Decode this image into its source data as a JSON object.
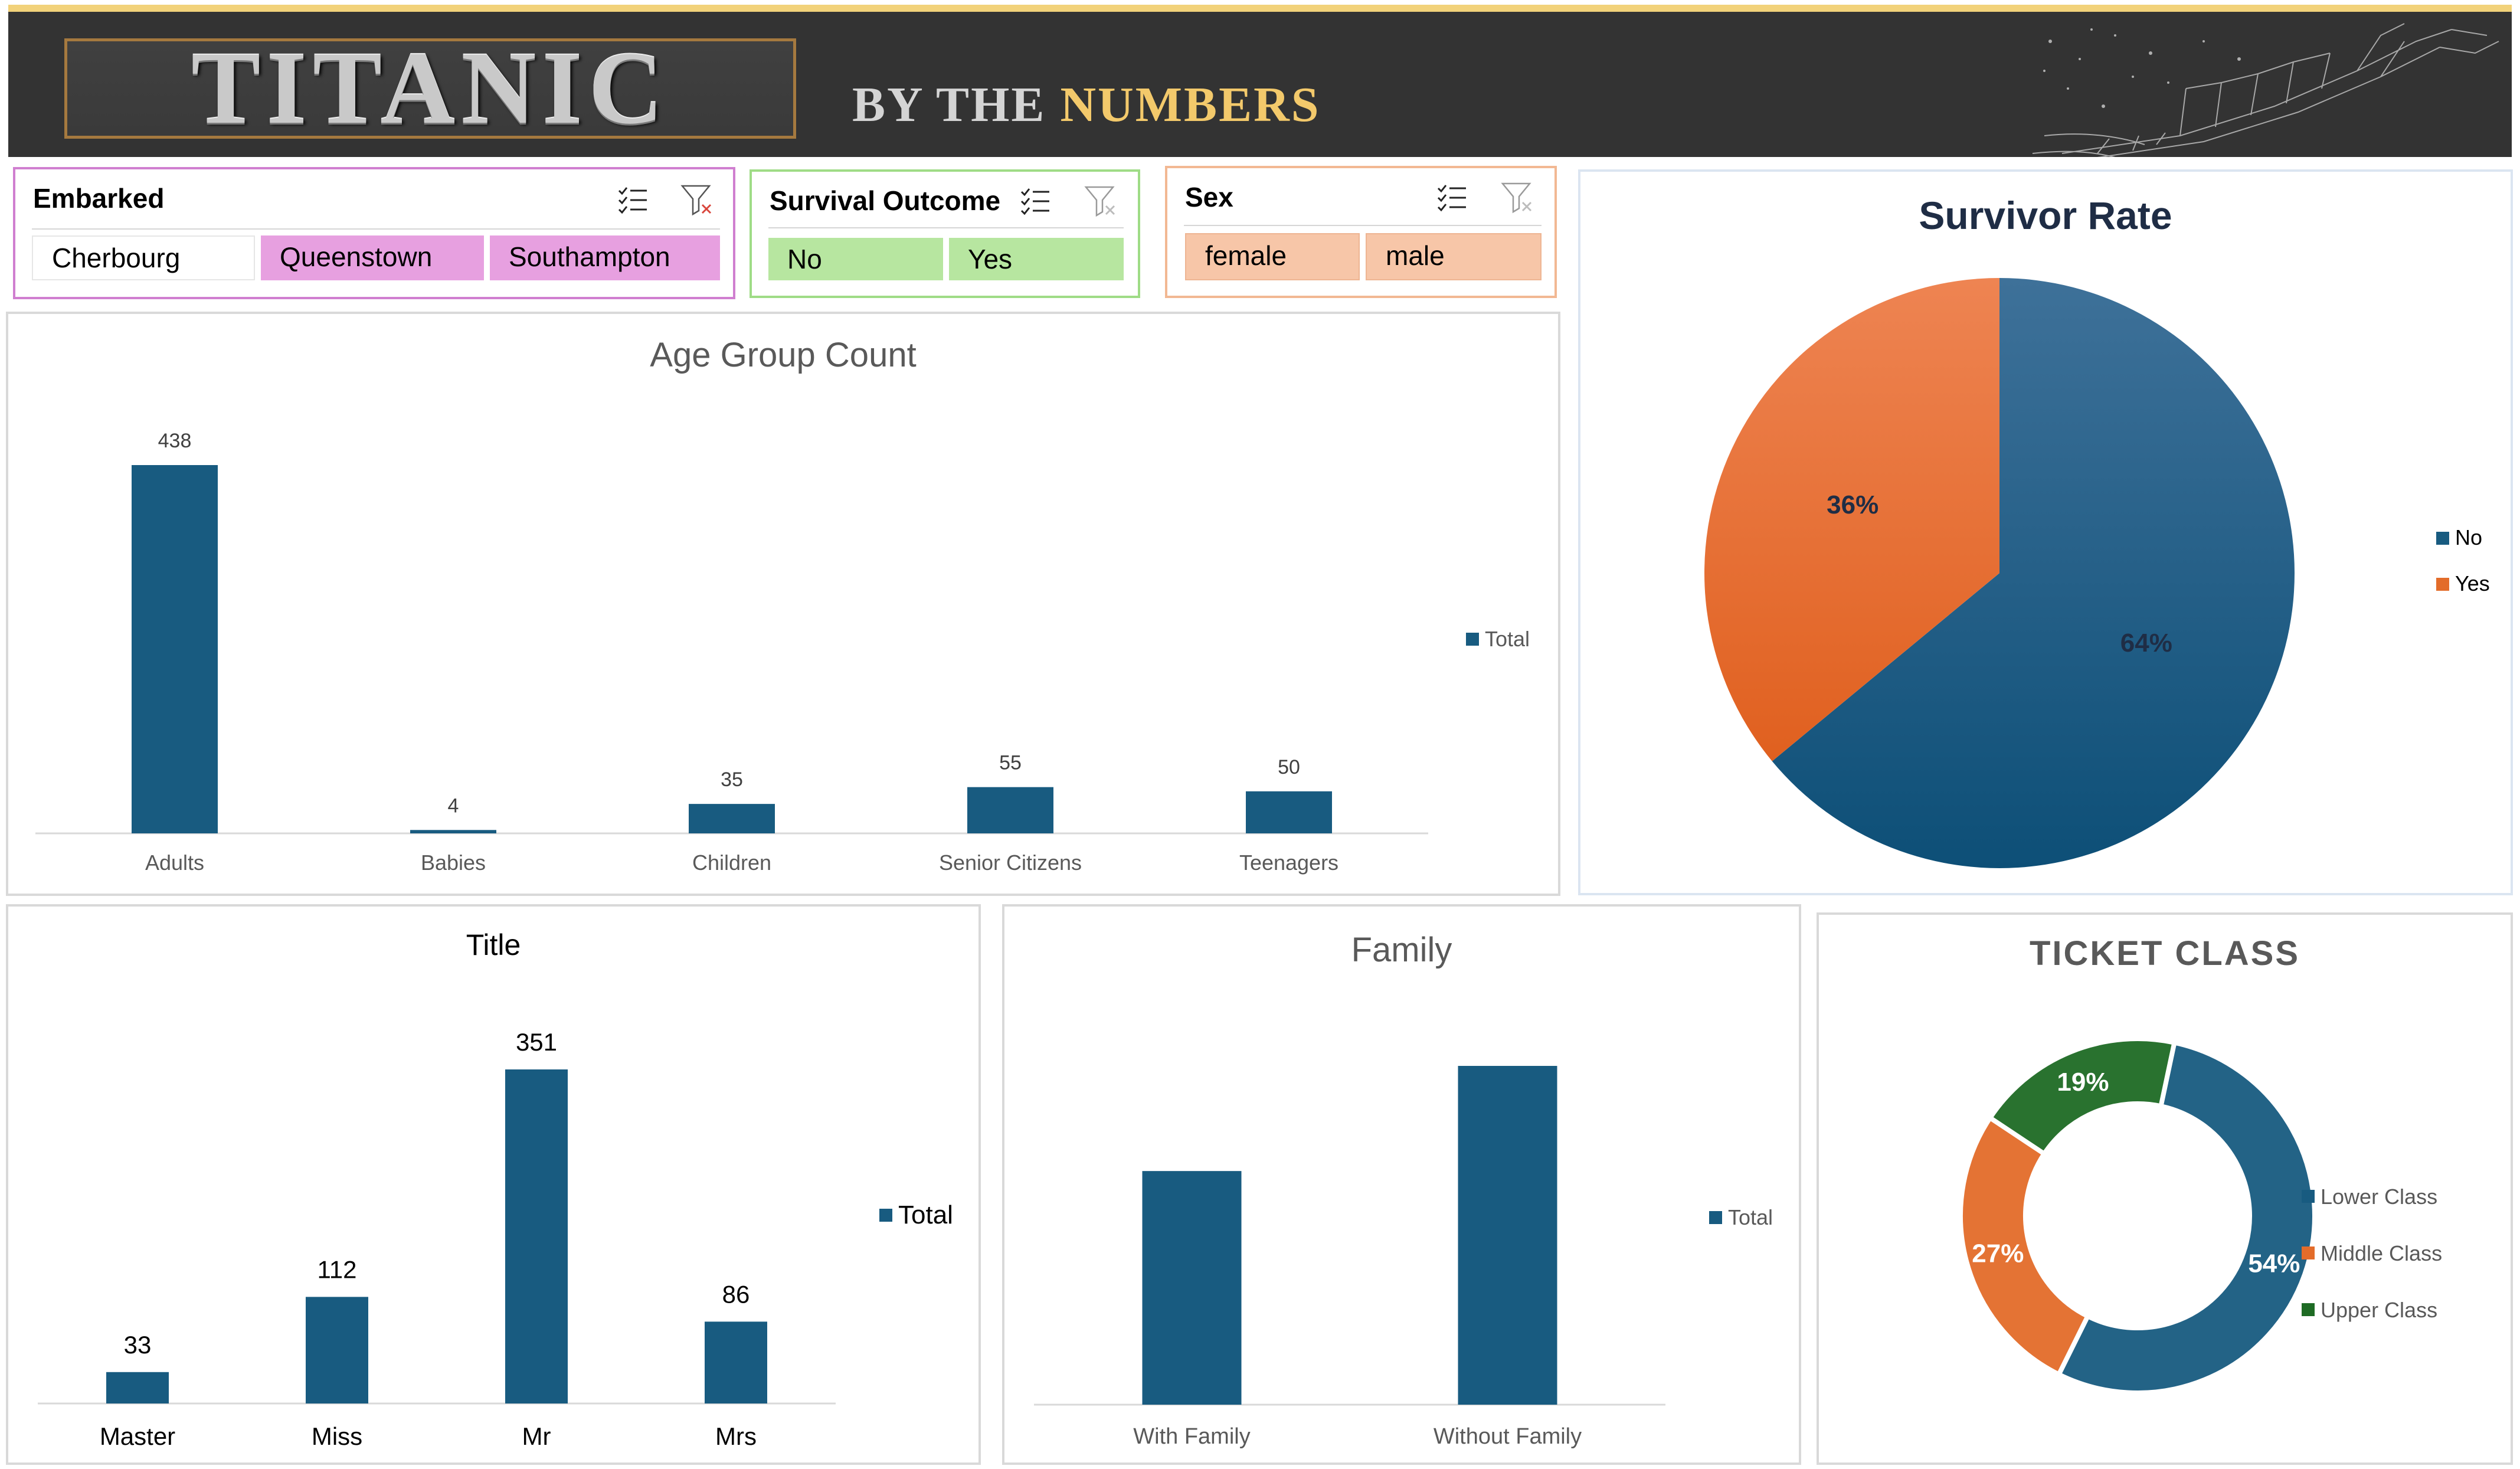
{
  "header": {
    "title": "TITANIC",
    "tagline_by": "BY THE",
    "tagline_numbers": "NUMBERS"
  },
  "colors": {
    "blue": "#185b80",
    "orange": "#e36c2a",
    "green": "#1e6b24",
    "slicer_pink": "#e7a0e0",
    "slicer_green": "#b7e6a0",
    "slicer_peach": "#f7c6a8"
  },
  "slicers": {
    "embarked": {
      "title": "Embarked",
      "items": [
        {
          "label": "Cherbourg",
          "selected": false
        },
        {
          "label": "Queenstown",
          "selected": true
        },
        {
          "label": "Southampton",
          "selected": true
        }
      ]
    },
    "survival": {
      "title": "Survival Outcome",
      "items": [
        {
          "label": "No",
          "selected": true
        },
        {
          "label": "Yes",
          "selected": true
        }
      ]
    },
    "sex": {
      "title": "Sex",
      "items": [
        {
          "label": "female",
          "selected": true
        },
        {
          "label": "male",
          "selected": true
        }
      ]
    },
    "icons": [
      "multi-select-icon",
      "clear-filter-icon"
    ]
  },
  "charts": {
    "age_group": {
      "title": "Age Group Count",
      "legend": "Total"
    },
    "survivor": {
      "title": "Survivor  Rate"
    },
    "title_chart": {
      "title": "Title",
      "legend": "Total"
    },
    "family": {
      "title": "Family",
      "legend": "Total"
    },
    "ticket": {
      "title": "TICKET CLASS"
    }
  },
  "chart_data": [
    {
      "type": "bar",
      "title": "Age Group Count",
      "categories": [
        "Adults",
        "Babies",
        "Children",
        "Senior Citizens",
        "Teenagers"
      ],
      "series": [
        {
          "name": "Total",
          "values": [
            438,
            4,
            35,
            55,
            50
          ]
        }
      ],
      "data_labels": [
        "438",
        "4",
        "35",
        "55",
        "50"
      ],
      "ylim": [
        0,
        438
      ],
      "grid": false,
      "legend": "right"
    },
    {
      "type": "pie",
      "title": "Survivor  Rate",
      "labels": [
        "No",
        "Yes"
      ],
      "values": [
        64,
        36
      ],
      "data_labels": [
        "64%",
        "36%"
      ],
      "legend": "right"
    },
    {
      "type": "bar",
      "title": "Title",
      "categories": [
        "Master",
        "Miss",
        "Mr",
        "Mrs"
      ],
      "series": [
        {
          "name": "Total",
          "values": [
            33,
            112,
            351,
            86
          ]
        }
      ],
      "data_labels": [
        "33",
        "112",
        "351",
        "86"
      ],
      "ylim": [
        0,
        351
      ],
      "grid": false,
      "legend": "right"
    },
    {
      "type": "bar",
      "title": "Family",
      "categories": [
        "With Family",
        "Without Family"
      ],
      "series": [
        {
          "name": "Total",
          "values": [
            260,
            377
          ]
        }
      ],
      "ylim": [
        0,
        377
      ],
      "grid": false,
      "legend": "right"
    },
    {
      "type": "pie",
      "title": "TICKET CLASS",
      "donut": true,
      "labels": [
        "Lower Class",
        "Middle Class",
        "Upper Class"
      ],
      "values": [
        54,
        27,
        19
      ],
      "data_labels": [
        "54%",
        "27%",
        "19%"
      ],
      "legend": "right"
    }
  ]
}
